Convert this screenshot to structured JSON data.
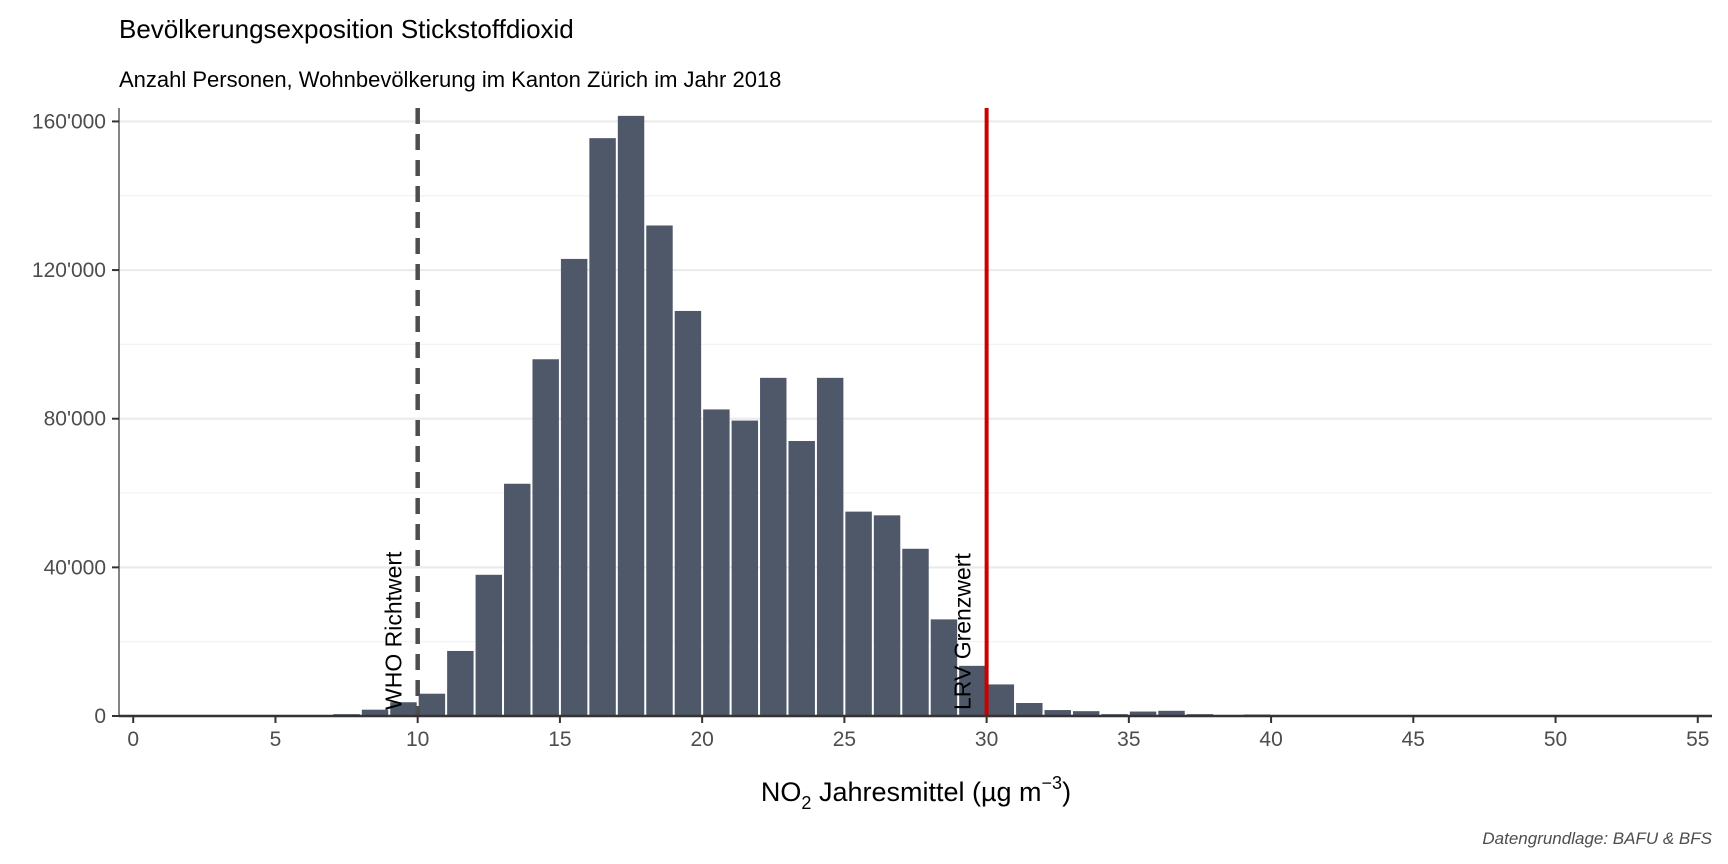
{
  "chart_data": {
    "type": "bar",
    "title": "Bevölkerungsexposition Stickstoffdioxid",
    "subtitle": "Anzahl Personen, Wohnbevölkerung im Kanton Zürich im Jahr 2018",
    "xlabel": {
      "prefix": "NO",
      "sub": "2",
      "mid": " Jahresmittel (µg m",
      "sup": "−3",
      "suffix": ")"
    },
    "ylabel": "",
    "caption": "Datengrundlage: BAFU & BFS",
    "xlim": [
      -0.5,
      55.5
    ],
    "ylim": [
      0,
      162000
    ],
    "x_ticks": [
      0,
      5,
      10,
      15,
      20,
      25,
      30,
      35,
      40,
      45,
      50,
      55
    ],
    "x_tick_labels": [
      "0",
      "5",
      "10",
      "15",
      "20",
      "25",
      "30",
      "35",
      "40",
      "45",
      "50",
      "55"
    ],
    "y_ticks": [
      0,
      40000,
      80000,
      120000,
      160000
    ],
    "y_tick_labels": [
      "0",
      "40'000",
      "80'000",
      "120'000",
      "160'000"
    ],
    "bar_width": 1,
    "bar_color": "#4f5869",
    "x": [
      7.5,
      8.5,
      9.5,
      10.5,
      11.5,
      12.5,
      13.5,
      14.5,
      15.5,
      16.5,
      17.5,
      18.5,
      19.5,
      20.5,
      21.5,
      22.5,
      23.5,
      24.5,
      25.5,
      26.5,
      27.5,
      28.5,
      29.5,
      30.5,
      31.5,
      32.5,
      33.5,
      34.5,
      35.5,
      36.5,
      37.5,
      39.5
    ],
    "values": [
      500,
      1700,
      3700,
      6000,
      17500,
      38000,
      62500,
      96000,
      123000,
      155500,
      161500,
      132000,
      109000,
      82500,
      79500,
      91000,
      74000,
      91000,
      55000,
      54000,
      45000,
      26000,
      13500,
      8500,
      3500,
      1600,
      1300,
      500,
      1200,
      1400,
      500,
      400
    ],
    "reference_lines": [
      {
        "x": 10,
        "label": "WHO Richtwert",
        "style": "dashed",
        "color": "#4d4d4d"
      },
      {
        "x": 30,
        "label": "LRV Grenzwert",
        "style": "solid",
        "color": "#cc0000"
      }
    ],
    "grid": "horizontal"
  }
}
